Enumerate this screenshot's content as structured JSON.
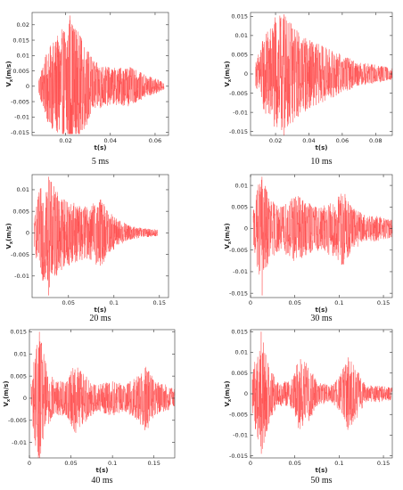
{
  "colors": {
    "signal": "#ff4d4d",
    "axis": "#333333",
    "text": "#222222"
  },
  "chart_data": [
    {
      "type": "line",
      "caption": "5 ms",
      "xlabel": "t(s)",
      "ylabel": "V",
      "ylabel_sub": "x",
      "ylabel_unit": "(m/s)",
      "xlim": [
        0.005,
        0.066
      ],
      "ylim": [
        -0.016,
        0.024
      ],
      "xticks": [
        0.02,
        0.04,
        0.06
      ],
      "xtick_labels": [
        "0.02",
        "0.04",
        "0.06"
      ],
      "yticks": [
        -0.015,
        -0.01,
        -0.005,
        0,
        0.005,
        0.01,
        0.015,
        0.02
      ],
      "ytick_labels": [
        "-0.015",
        "-0.01",
        "-0.005",
        "0",
        "0.005",
        "0.01",
        "0.015",
        "0.02"
      ],
      "signal": {
        "start": 0.008,
        "end": 0.064,
        "peak_time": 0.022,
        "peak_pos": 0.023,
        "peak_neg": -0.0155,
        "envelope": [
          [
            0.008,
            0.003
          ],
          [
            0.012,
            0.012
          ],
          [
            0.018,
            0.018
          ],
          [
            0.022,
            0.023
          ],
          [
            0.027,
            0.016
          ],
          [
            0.033,
            0.008
          ],
          [
            0.04,
            0.006
          ],
          [
            0.048,
            0.0065
          ],
          [
            0.055,
            0.004
          ],
          [
            0.062,
            0.002
          ],
          [
            0.064,
            0.001
          ]
        ]
      }
    },
    {
      "type": "line",
      "caption": "10 ms",
      "xlabel": "t(s)",
      "ylabel": "V",
      "ylabel_sub": "x",
      "ylabel_unit": "(m/s)",
      "xlim": [
        0.005,
        0.09
      ],
      "ylim": [
        -0.016,
        0.016
      ],
      "xticks": [
        0.02,
        0.04,
        0.06,
        0.08
      ],
      "xtick_labels": [
        "0.02",
        "0.04",
        "0.06",
        "0.08"
      ],
      "yticks": [
        -0.015,
        -0.01,
        -0.005,
        0,
        0.005,
        0.01,
        0.015
      ],
      "ytick_labels": [
        "-0.015",
        "-0.01",
        "-0.005",
        "0",
        "0.005",
        "0.01",
        "0.015"
      ],
      "signal": {
        "start": 0.008,
        "end": 0.09,
        "peak_time": 0.025,
        "peak_pos": 0.0155,
        "peak_neg": -0.016,
        "envelope": [
          [
            0.008,
            0.003
          ],
          [
            0.013,
            0.01
          ],
          [
            0.02,
            0.015
          ],
          [
            0.025,
            0.0155
          ],
          [
            0.032,
            0.012
          ],
          [
            0.04,
            0.009
          ],
          [
            0.05,
            0.007
          ],
          [
            0.06,
            0.005
          ],
          [
            0.07,
            0.003
          ],
          [
            0.08,
            0.0025
          ],
          [
            0.09,
            0.0015
          ]
        ]
      }
    },
    {
      "type": "line",
      "caption": "20 ms",
      "xlabel": "t(s)",
      "ylabel": "V",
      "ylabel_sub": "x",
      "ylabel_unit": "(m/s)",
      "xlim": [
        0.01,
        0.16
      ],
      "ylim": [
        -0.015,
        0.0135
      ],
      "xticks": [
        0.05,
        0.1,
        0.15
      ],
      "xtick_labels": [
        "0.05",
        "0.1",
        "0.15"
      ],
      "yticks": [
        -0.01,
        -0.005,
        0,
        0.005,
        0.01
      ],
      "ytick_labels": [
        "-0.01",
        "-0.005",
        "0",
        "0.005",
        "0.01"
      ],
      "signal": {
        "start": 0.012,
        "end": 0.148,
        "peak_time": 0.028,
        "peak_pos": 0.013,
        "peak_neg": -0.0145,
        "envelope": [
          [
            0.012,
            0.003
          ],
          [
            0.018,
            0.01
          ],
          [
            0.028,
            0.013
          ],
          [
            0.04,
            0.009
          ],
          [
            0.055,
            0.007
          ],
          [
            0.07,
            0.006
          ],
          [
            0.085,
            0.008
          ],
          [
            0.095,
            0.005
          ],
          [
            0.105,
            0.003
          ],
          [
            0.12,
            0.0015
          ],
          [
            0.135,
            0.001
          ],
          [
            0.148,
            0.0008
          ]
        ]
      }
    },
    {
      "type": "line",
      "caption": "30 ms",
      "xlabel": "t(s)",
      "ylabel": "V",
      "ylabel_sub": "x",
      "ylabel_unit": "(m/s)",
      "xlim": [
        0,
        0.16
      ],
      "ylim": [
        -0.016,
        0.0125
      ],
      "xticks": [
        0,
        0.05,
        0.1,
        0.15
      ],
      "xtick_labels": [
        "0",
        "0.05",
        "0.1",
        "0.15"
      ],
      "yticks": [
        -0.015,
        -0.01,
        -0.005,
        0,
        0.005,
        0.01
      ],
      "ytick_labels": [
        "-0.015",
        "-0.01",
        "-0.005",
        "0",
        "0.005",
        "0.01"
      ],
      "signal": {
        "start": 0.003,
        "end": 0.16,
        "peak_time": 0.013,
        "peak_pos": 0.012,
        "peak_neg": -0.0155,
        "envelope": [
          [
            0.003,
            0.004
          ],
          [
            0.008,
            0.01
          ],
          [
            0.013,
            0.012
          ],
          [
            0.022,
            0.007
          ],
          [
            0.035,
            0.005
          ],
          [
            0.05,
            0.008
          ],
          [
            0.065,
            0.006
          ],
          [
            0.08,
            0.005
          ],
          [
            0.095,
            0.007
          ],
          [
            0.105,
            0.009
          ],
          [
            0.115,
            0.005
          ],
          [
            0.13,
            0.003
          ],
          [
            0.145,
            0.003
          ],
          [
            0.16,
            0.002
          ]
        ]
      }
    },
    {
      "type": "line",
      "caption": "40 ms",
      "xlabel": "t(s)",
      "ylabel": "V",
      "ylabel_sub": "x",
      "ylabel_unit": "(m/s)",
      "xlim": [
        0,
        0.175
      ],
      "ylim": [
        -0.0135,
        0.0155
      ],
      "xticks": [
        0,
        0.05,
        0.1,
        0.15
      ],
      "xtick_labels": [
        "0",
        "0.05",
        "0.1",
        "0.15"
      ],
      "yticks": [
        -0.01,
        -0.005,
        0,
        0.005,
        0.01,
        0.015
      ],
      "ytick_labels": [
        "-0.01",
        "-0.005",
        "0",
        "0.005",
        "0.01",
        "0.015"
      ],
      "signal": {
        "start": 0.002,
        "end": 0.175,
        "peak_time": 0.012,
        "peak_pos": 0.015,
        "peak_neg": -0.0135,
        "envelope": [
          [
            0.002,
            0.004
          ],
          [
            0.007,
            0.011
          ],
          [
            0.012,
            0.015
          ],
          [
            0.02,
            0.008
          ],
          [
            0.03,
            0.004
          ],
          [
            0.045,
            0.004
          ],
          [
            0.055,
            0.008
          ],
          [
            0.065,
            0.006
          ],
          [
            0.08,
            0.003
          ],
          [
            0.1,
            0.004
          ],
          [
            0.115,
            0.003
          ],
          [
            0.13,
            0.005
          ],
          [
            0.14,
            0.008
          ],
          [
            0.15,
            0.004
          ],
          [
            0.165,
            0.003
          ],
          [
            0.175,
            0.002
          ]
        ]
      }
    },
    {
      "type": "line",
      "caption": "50 ms",
      "xlabel": "t(s)",
      "ylabel": "V",
      "ylabel_sub": "x",
      "ylabel_unit": "(m/s)",
      "xlim": [
        0,
        0.16
      ],
      "ylim": [
        -0.0155,
        0.0155
      ],
      "xticks": [
        0,
        0.05,
        0.1,
        0.15
      ],
      "xtick_labels": [
        "0",
        "0.05",
        "0.1",
        "0.15"
      ],
      "yticks": [
        -0.015,
        -0.01,
        -0.005,
        0,
        0.005,
        0.01,
        0.015
      ],
      "ytick_labels": [
        "-0.015",
        "-0.01",
        "-0.005",
        "0",
        "0.005",
        "0.01",
        "0.015"
      ],
      "signal": {
        "start": 0.002,
        "end": 0.16,
        "peak_time": 0.012,
        "peak_pos": 0.015,
        "peak_neg": -0.0145,
        "envelope": [
          [
            0.002,
            0.004
          ],
          [
            0.007,
            0.011
          ],
          [
            0.012,
            0.015
          ],
          [
            0.02,
            0.008
          ],
          [
            0.03,
            0.003
          ],
          [
            0.045,
            0.003
          ],
          [
            0.055,
            0.009
          ],
          [
            0.065,
            0.007
          ],
          [
            0.075,
            0.003
          ],
          [
            0.09,
            0.002
          ],
          [
            0.1,
            0.004
          ],
          [
            0.11,
            0.009
          ],
          [
            0.12,
            0.006
          ],
          [
            0.13,
            0.002
          ],
          [
            0.145,
            0.002
          ],
          [
            0.16,
            0.0015
          ]
        ]
      }
    }
  ]
}
